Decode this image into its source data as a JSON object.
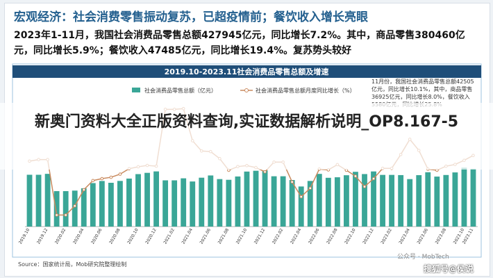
{
  "header": {
    "title": "宏观经济：社会消费零售振动复苏，已超疫情前；餐饮收入增长亮眼",
    "paragraph": "2023年1-11月，我国社会消费品零售总额427945亿元，同比增长7.2%。其中，商品零售380460亿元，同比增长5.9%；餐饮收入47485亿元，同比增长19.4%。复苏势头较好"
  },
  "chart_data": {
    "type": "bar-line",
    "title": "2019.10-2023.11社会消费品零售总额及增速",
    "annotation": "11月份，我国社会消费品零售总额42505亿元，同比增长10.1%，其中，商品零售36925亿元，同比增长8.0%，餐饮收入5580亿元，同比增长25.8%",
    "categories": [
      "2019.10",
      null,
      "2019.12",
      null,
      "2020.02",
      null,
      "2020.04",
      null,
      "2020.06",
      null,
      "2020.08",
      null,
      "2020.10",
      null,
      "2020.12",
      null,
      "2021.02",
      null,
      "2021.04",
      null,
      "2021.06",
      null,
      "2021.08",
      null,
      "2021.10",
      null,
      "2021.12",
      null,
      "2022.02",
      null,
      "2022.04",
      null,
      "2022.06",
      null,
      "2022.08",
      null,
      "2022.10",
      null,
      "2022.12",
      null,
      "2023.02",
      null,
      "2023.04",
      null,
      "2023.06",
      null,
      "2023.08",
      null,
      "2023.10",
      "2023.11"
    ],
    "series": [
      {
        "name": "社会消费品零售总额（亿元）",
        "color": "#3aa697",
        "values": [
          38104,
          38094,
          38777,
          26065,
          26065,
          26450,
          28178,
          31973,
          33526,
          32203,
          33571,
          35295,
          38576,
          39514,
          40566,
          34000,
          34000,
          35484,
          33153,
          35945,
          37586,
          34925,
          34395,
          36833,
          40454,
          41043,
          41269,
          37000,
          37000,
          34233,
          29483,
          33547,
          38742,
          35870,
          36258,
          37745,
          40271,
          38615,
          40542,
          38000,
          38000,
          37855,
          34910,
          37803,
          39951,
          36761,
          37933,
          39826,
          43333,
          42505
        ]
      },
      {
        "name": "社会消费品零售总额月度同比增长（%）",
        "color": "#c98a5e",
        "axis": "y2",
        "values": [
          7.2,
          8.0,
          8.0,
          -20.5,
          -20.5,
          -15.8,
          -7.5,
          -2.8,
          -1.8,
          -1.1,
          0.5,
          3.3,
          4.3,
          5.0,
          4.6,
          33.8,
          33.8,
          34.2,
          17.7,
          12.4,
          12.1,
          8.5,
          2.5,
          4.4,
          4.9,
          3.9,
          1.7,
          6.7,
          6.7,
          -3.5,
          -11.1,
          -6.7,
          3.1,
          2.7,
          5.4,
          2.5,
          -0.5,
          -5.9,
          -1.8,
          3.5,
          3.5,
          10.6,
          18.4,
          12.7,
          3.1,
          2.5,
          4.6,
          5.5,
          7.6,
          10.1
        ]
      }
    ],
    "ylim": [
      0,
      46000
    ],
    "y2lim": [
      -25,
      40
    ],
    "grid": false,
    "source": "Source：国家统计局，Mob研究院整理绘制"
  },
  "banner": "新奥门资料大全正版资料查询,实证数据解析说明_OP8.167-5",
  "watermark": [
    "公众号 · MobTech",
    "搜狐号@侯说"
  ]
}
